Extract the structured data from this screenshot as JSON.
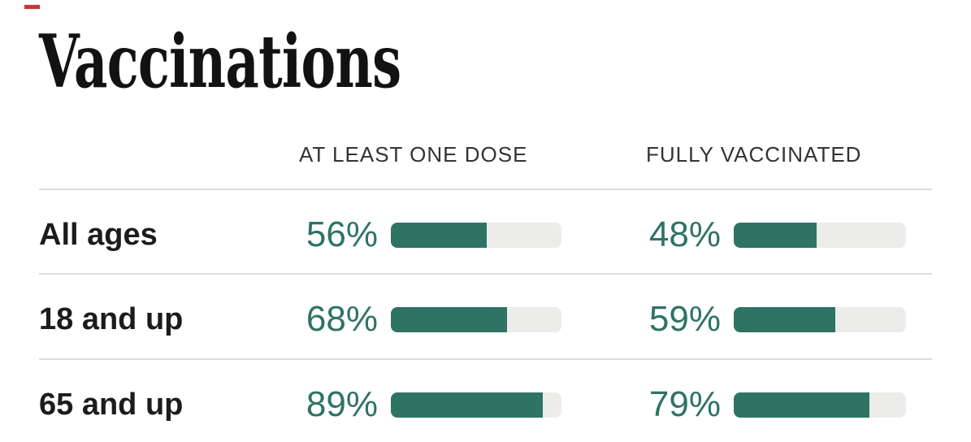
{
  "page": {
    "title": "Vaccinations",
    "accent_dash_color": "#d0342c"
  },
  "table": {
    "headers": [
      "AT LEAST ONE DOSE",
      "FULLY VACCINATED"
    ],
    "rows": [
      {
        "label": "All ages",
        "one_dose_pct": "56%",
        "one_dose_value": 56,
        "fully_pct": "48%",
        "fully_value": 48
      },
      {
        "label": "18 and up",
        "one_dose_pct": "68%",
        "one_dose_value": 68,
        "fully_pct": "59%",
        "fully_value": 59
      },
      {
        "label": "65 and up",
        "one_dose_pct": "89%",
        "one_dose_value": 89,
        "fully_pct": "79%",
        "fully_value": 79
      }
    ]
  },
  "chart_data": {
    "type": "bar",
    "title": "Vaccinations",
    "categories": [
      "All ages",
      "18 and up",
      "65 and up"
    ],
    "series": [
      {
        "name": "AT LEAST ONE DOSE",
        "values": [
          56,
          68,
          89
        ]
      },
      {
        "name": "FULLY VACCINATED",
        "values": [
          48,
          59,
          79
        ]
      }
    ],
    "unit": "%",
    "xlim": [
      0,
      100
    ],
    "orientation": "horizontal",
    "grid": false,
    "legend_position": "column-headers",
    "bar_fill_color": "#2f7365",
    "bar_track_color": "#ececea",
    "value_label_color": "#2f7365"
  }
}
